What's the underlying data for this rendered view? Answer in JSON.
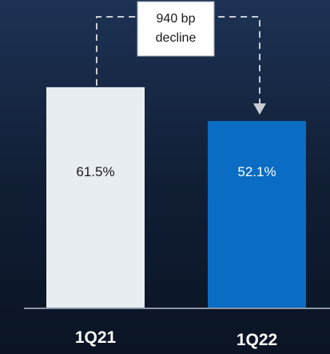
{
  "chart_data": {
    "type": "bar",
    "categories": [
      "1Q21",
      "1Q22"
    ],
    "values": [
      61.5,
      52.1
    ],
    "value_labels": [
      "61.5%",
      "52.1%"
    ],
    "ylim": [
      0,
      70
    ],
    "grid": false,
    "colors": {
      "bars": [
        "#e8edf2",
        "#0a6cc2"
      ],
      "value_text": [
        "#1a1a1a",
        "#ffffff"
      ],
      "axis": "#8a95a5",
      "connector": "#c8cdd4"
    },
    "annotation": {
      "line1": "940 bp",
      "line2": "decline"
    }
  }
}
